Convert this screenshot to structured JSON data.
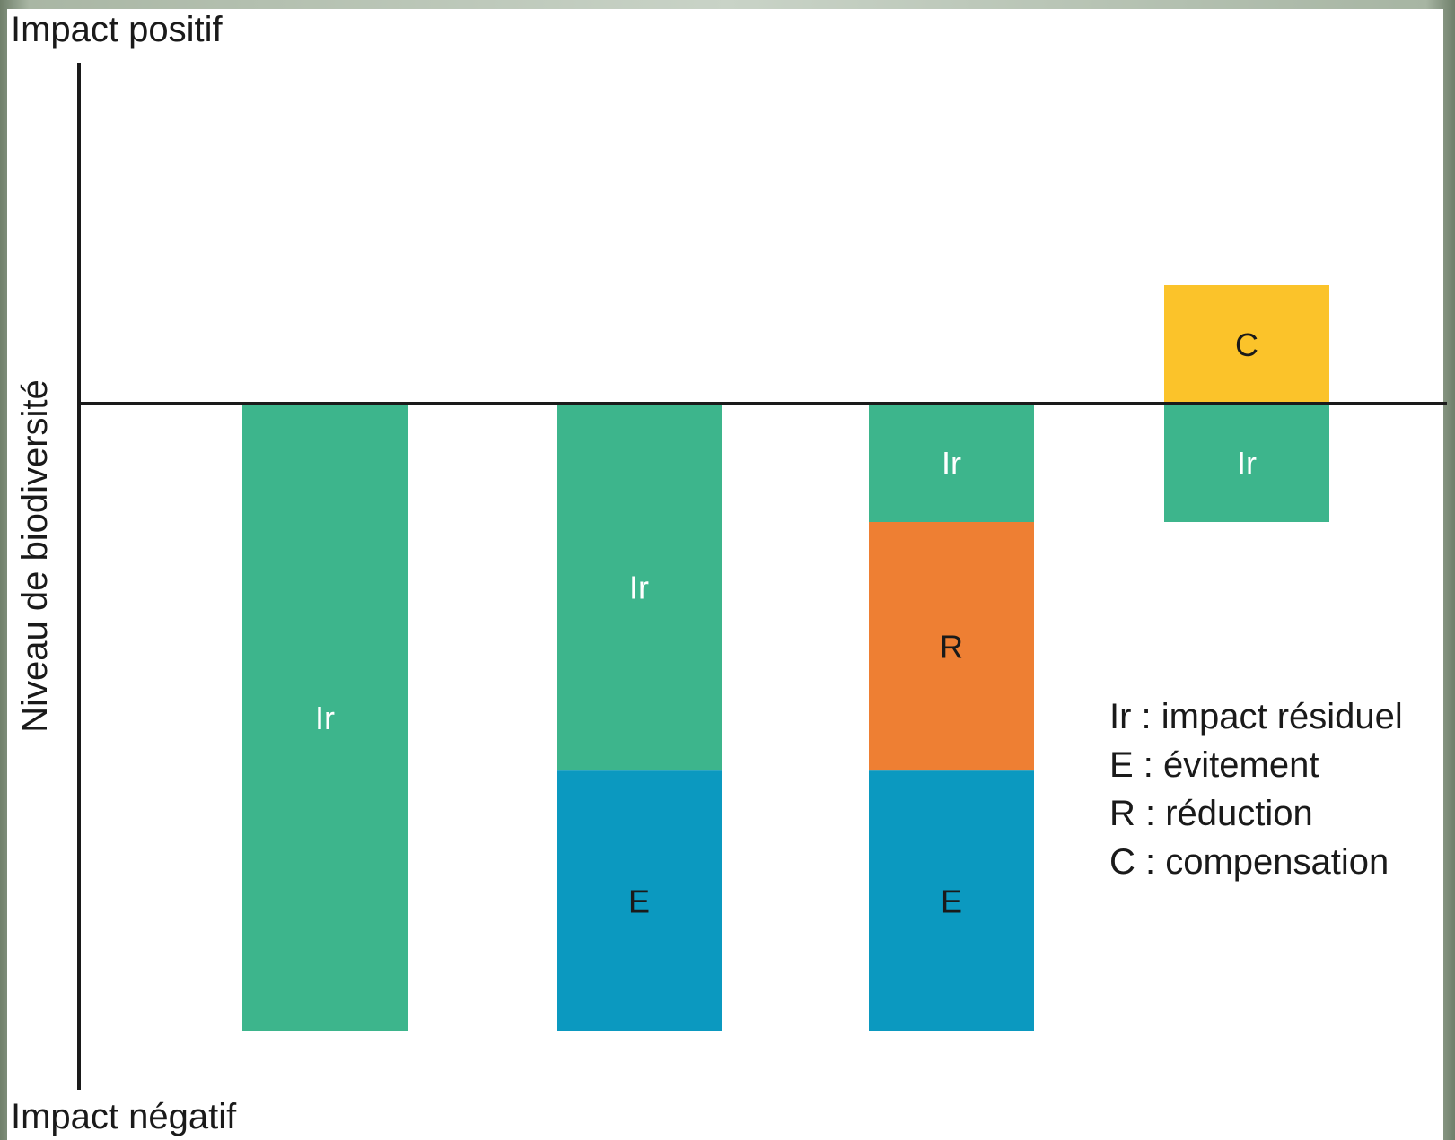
{
  "chart_data": {
    "type": "bar",
    "stacked": true,
    "top_label": "Impact positif",
    "bottom_label": "Impact négatif",
    "ylabel": "Niveau de biodiversité",
    "ylim": [
      -5.4,
      2.9
    ],
    "baseline": 0,
    "grid": false,
    "legend_position": "right",
    "colors": {
      "Ir": "#3db58c",
      "E": "#0b99c0",
      "R": "#ee7f33",
      "C": "#fbc32a"
    },
    "bars": [
      {
        "segments": [
          {
            "key": "Ir",
            "label": "Ir",
            "from": 0,
            "to": -5.3
          }
        ]
      },
      {
        "segments": [
          {
            "key": "Ir",
            "label": "Ir",
            "from": 0,
            "to": -3.1
          },
          {
            "key": "E",
            "label": "E",
            "from": -3.1,
            "to": -5.3
          }
        ]
      },
      {
        "segments": [
          {
            "key": "Ir",
            "label": "Ir",
            "from": 0,
            "to": -1.0
          },
          {
            "key": "R",
            "label": "R",
            "from": -1.0,
            "to": -3.1
          },
          {
            "key": "E",
            "label": "E",
            "from": -3.1,
            "to": -5.3
          }
        ]
      },
      {
        "segments": [
          {
            "key": "C",
            "label": "C",
            "from": 0,
            "to": 1.0
          },
          {
            "key": "Ir",
            "label": "Ir",
            "from": 0,
            "to": -1.0
          }
        ]
      }
    ],
    "legend": [
      "Ir : impact résiduel",
      "E : évitement",
      "R : réduction",
      "C : compensation"
    ]
  }
}
